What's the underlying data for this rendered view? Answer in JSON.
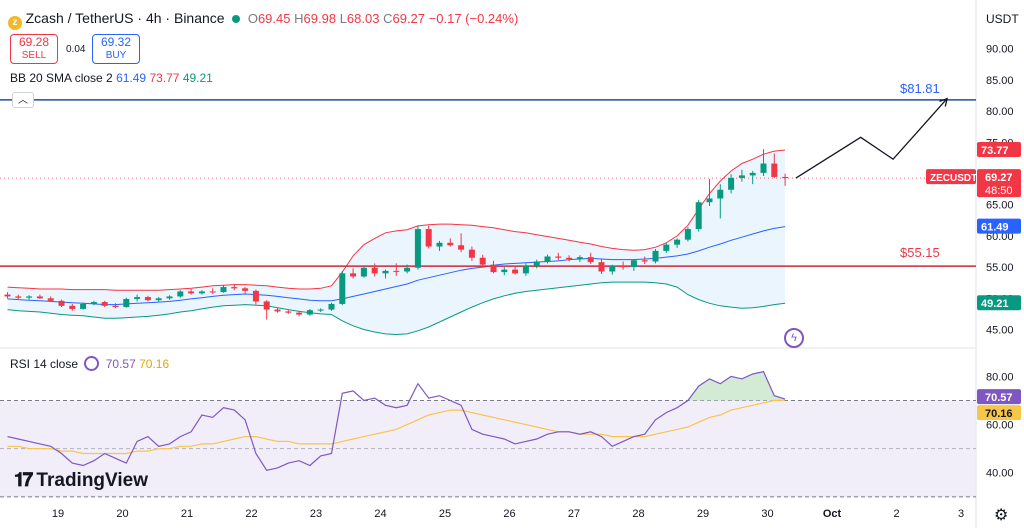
{
  "header": {
    "symbol_title": "Zcash / TetherUS · 4h · Binance",
    "open_label": "O",
    "open": "69.45",
    "high_label": "H",
    "high": "69.98",
    "low_label": "L",
    "low": "68.03",
    "close_label": "C",
    "close": "69.27",
    "change": "−0.17 (−0.24%)",
    "currency": "USDT"
  },
  "trade": {
    "sell_price": "69.28",
    "sell_label": "SELL",
    "spread": "0.04",
    "buy_price": "69.32",
    "buy_label": "BUY"
  },
  "bb_legend": {
    "label": "BB 20 SMA close 2",
    "basis": "61.49",
    "upper": "73.77",
    "lower": "49.21"
  },
  "rsi_legend": {
    "label": "RSI 14 close",
    "rsi": "70.57",
    "ma": "70.16"
  },
  "logo_text": "TradingView",
  "colors": {
    "up": "#089981",
    "down": "#f23645",
    "bb_basis": "#2962ff",
    "bb_upper": "#f23645",
    "bb_lower": "#089981",
    "bb_fill": "#e3f2fd",
    "rsi_line": "#7e57c2",
    "rsi_ma": "#f7c548",
    "rsi_band": "#ede7f6",
    "hline_blue": "#1e4e9a",
    "hline_red": "#cc2936",
    "gridtext": "#131722"
  },
  "icons": [
    "collapse-chevron-icon",
    "rsi-settings-icon",
    "bolt-icon",
    "settings-gear-icon",
    "tradingview-logo-icon"
  ],
  "chart_data": [
    {
      "type": "candlestick",
      "title": "Zcash / TetherUS · 4h · Binance",
      "ylim": [
        43,
        93
      ],
      "y_ticks": [
        45,
        50,
        55,
        60,
        65,
        70,
        75,
        80,
        85,
        90
      ],
      "y_tick_labels": [
        "45.00",
        "50.00",
        "55.00",
        "60.00",
        "65.00",
        "70.00",
        "75.00",
        "80.00",
        "85.00",
        "90.00"
      ],
      "x_ticks": [
        0,
        6,
        12,
        18,
        24,
        30,
        36,
        42,
        48,
        54,
        60,
        66,
        72
      ],
      "x_tick_labels": [
        "19",
        "20",
        "21",
        "22",
        "23",
        "24",
        "25",
        "26",
        "27",
        "28",
        "29",
        "30",
        "Oct",
        "2",
        "3"
      ],
      "x_ticks_full": [
        0,
        6,
        12,
        18,
        24,
        30,
        36,
        42,
        48,
        54,
        60,
        66,
        72,
        78,
        84
      ],
      "candles": [
        [
          50.6,
          51.0,
          50.0,
          50.3
        ],
        [
          50.3,
          50.6,
          49.9,
          50.1
        ],
        [
          50.1,
          50.5,
          49.8,
          50.3
        ],
        [
          50.3,
          50.6,
          49.9,
          50.0
        ],
        [
          50.0,
          50.3,
          49.4,
          49.6
        ],
        [
          49.6,
          49.8,
          48.6,
          48.8
        ],
        [
          48.8,
          49.1,
          48.0,
          48.3
        ],
        [
          48.3,
          49.3,
          48.2,
          49.1
        ],
        [
          49.1,
          49.6,
          48.9,
          49.4
        ],
        [
          49.4,
          49.6,
          48.6,
          48.8
        ],
        [
          48.8,
          49.2,
          48.4,
          48.6
        ],
        [
          48.6,
          50.1,
          48.5,
          49.9
        ],
        [
          49.9,
          50.6,
          49.5,
          50.2
        ],
        [
          50.2,
          50.4,
          49.5,
          49.7
        ],
        [
          49.7,
          50.2,
          49.5,
          50.0
        ],
        [
          50.0,
          50.5,
          49.8,
          50.3
        ],
        [
          50.3,
          51.3,
          50.1,
          51.1
        ],
        [
          51.1,
          51.5,
          50.6,
          50.8
        ],
        [
          50.8,
          51.3,
          50.6,
          51.1
        ],
        [
          51.1,
          51.6,
          50.7,
          51.0
        ],
        [
          51.0,
          52.1,
          50.9,
          51.8
        ],
        [
          51.8,
          52.3,
          51.3,
          51.6
        ],
        [
          51.6,
          51.8,
          50.8,
          51.2
        ],
        [
          51.2,
          51.4,
          49.0,
          49.5
        ],
        [
          49.5,
          49.7,
          46.6,
          48.2
        ],
        [
          48.2,
          48.5,
          47.7,
          47.9
        ],
        [
          47.9,
          48.1,
          47.5,
          47.7
        ],
        [
          47.7,
          48.0,
          47.1,
          47.4
        ],
        [
          47.4,
          48.3,
          47.2,
          48.1
        ],
        [
          48.1,
          48.4,
          47.8,
          48.2
        ],
        [
          48.2,
          49.3,
          48.0,
          49.1
        ],
        [
          49.1,
          54.4,
          48.9,
          54.0
        ],
        [
          54.0,
          54.8,
          53.2,
          53.5
        ],
        [
          53.5,
          55.2,
          53.3,
          54.9
        ],
        [
          54.9,
          55.6,
          53.5,
          54.0
        ],
        [
          54.0,
          54.6,
          53.2,
          54.4
        ],
        [
          54.4,
          55.6,
          53.6,
          54.3
        ],
        [
          54.3,
          55.4,
          54.0,
          54.9
        ],
        [
          54.9,
          61.6,
          54.6,
          61.1
        ],
        [
          61.1,
          61.6,
          58.0,
          58.3
        ],
        [
          58.3,
          59.2,
          57.6,
          58.9
        ],
        [
          58.9,
          59.6,
          58.3,
          58.5
        ],
        [
          58.5,
          60.4,
          57.4,
          57.8
        ],
        [
          57.8,
          58.3,
          56.0,
          56.5
        ],
        [
          56.5,
          57.0,
          55.0,
          55.4
        ],
        [
          55.4,
          56.0,
          54.0,
          54.2
        ],
        [
          54.2,
          55.0,
          53.7,
          54.6
        ],
        [
          54.6,
          55.2,
          53.8,
          54.0
        ],
        [
          54.0,
          55.6,
          53.6,
          55.2
        ],
        [
          55.2,
          56.2,
          54.8,
          55.9
        ],
        [
          55.9,
          57.0,
          55.6,
          56.7
        ],
        [
          56.7,
          57.3,
          56.1,
          56.5
        ],
        [
          56.5,
          56.9,
          55.9,
          56.3
        ],
        [
          56.3,
          56.9,
          55.8,
          56.6
        ],
        [
          56.6,
          57.3,
          55.5,
          55.8
        ],
        [
          55.8,
          56.4,
          53.9,
          54.3
        ],
        [
          54.3,
          55.4,
          53.8,
          55.2
        ],
        [
          55.2,
          55.9,
          54.6,
          55.0
        ],
        [
          55.0,
          56.3,
          54.4,
          56.1
        ],
        [
          56.1,
          56.7,
          55.5,
          55.9
        ],
        [
          55.9,
          57.9,
          55.6,
          57.6
        ],
        [
          57.6,
          58.9,
          57.3,
          58.6
        ],
        [
          58.6,
          59.6,
          58.1,
          59.4
        ],
        [
          59.4,
          61.4,
          59.1,
          61.1
        ],
        [
          61.1,
          65.8,
          60.7,
          65.4
        ],
        [
          65.4,
          69.1,
          64.8,
          66.0
        ],
        [
          66.0,
          68.3,
          62.8,
          67.4
        ],
        [
          67.4,
          69.9,
          66.8,
          69.3
        ],
        [
          69.3,
          70.6,
          68.7,
          69.7
        ],
        [
          69.7,
          70.4,
          68.3,
          70.1
        ],
        [
          70.1,
          73.9,
          69.6,
          71.6
        ],
        [
          71.6,
          73.2,
          69.3,
          69.45
        ],
        [
          69.45,
          69.98,
          68.03,
          69.27
        ]
      ],
      "bb_upper": [
        51.8,
        51.7,
        51.6,
        51.5,
        51.5,
        51.5,
        51.4,
        51.4,
        51.4,
        51.4,
        51.3,
        51.3,
        51.3,
        51.3,
        51.3,
        51.4,
        51.5,
        51.6,
        51.8,
        52.0,
        52.1,
        52.2,
        52.2,
        52.1,
        52.0,
        51.8,
        51.6,
        51.5,
        51.5,
        51.6,
        52.0,
        54.2,
        56.8,
        58.6,
        59.6,
        60.5,
        60.8,
        61.0,
        61.6,
        61.8,
        61.9,
        61.9,
        61.8,
        61.7,
        61.5,
        61.3,
        61.0,
        60.7,
        60.5,
        60.2,
        59.9,
        59.6,
        59.3,
        59.0,
        58.7,
        58.3,
        58.0,
        57.8,
        57.7,
        57.8,
        58.2,
        58.9,
        60.0,
        61.7,
        64.3,
        66.8,
        68.8,
        70.4,
        71.6,
        72.3,
        73.1,
        73.6,
        73.77
      ],
      "bb_basis": [
        49.9,
        49.8,
        49.7,
        49.6,
        49.5,
        49.4,
        49.3,
        49.2,
        49.1,
        49.0,
        49.0,
        49.1,
        49.2,
        49.3,
        49.4,
        49.5,
        49.7,
        49.9,
        50.1,
        50.3,
        50.5,
        50.6,
        50.7,
        50.6,
        50.5,
        50.3,
        50.1,
        49.9,
        49.7,
        49.6,
        49.6,
        49.9,
        50.3,
        50.7,
        51.1,
        51.5,
        51.9,
        52.3,
        52.9,
        53.3,
        53.7,
        54.1,
        54.5,
        54.8,
        55.0,
        55.3,
        55.5,
        55.6,
        55.7,
        55.8,
        55.9,
        56.0,
        56.2,
        56.3,
        56.4,
        56.3,
        56.2,
        56.2,
        56.2,
        56.3,
        56.4,
        56.6,
        56.8,
        57.1,
        57.6,
        58.2,
        58.7,
        59.3,
        59.8,
        60.3,
        60.8,
        61.2,
        61.49
      ],
      "bb_lower": [
        48.2,
        48.0,
        47.9,
        47.8,
        47.6,
        47.4,
        47.3,
        47.2,
        47.0,
        46.8,
        46.8,
        46.9,
        47.0,
        47.1,
        47.3,
        47.5,
        47.8,
        48.0,
        48.3,
        48.6,
        48.8,
        48.9,
        49.0,
        48.9,
        48.8,
        48.5,
        48.2,
        47.9,
        47.7,
        47.5,
        47.4,
        46.4,
        45.6,
        45.0,
        44.6,
        44.3,
        44.2,
        44.3,
        44.8,
        45.4,
        46.2,
        47.0,
        47.8,
        48.6,
        49.3,
        49.9,
        50.4,
        50.8,
        51.1,
        51.3,
        51.5,
        51.7,
        51.9,
        52.1,
        52.3,
        52.5,
        52.6,
        52.6,
        52.6,
        52.6,
        52.5,
        52.3,
        51.8,
        50.6,
        49.8,
        49.2,
        48.8,
        48.6,
        48.4,
        48.5,
        48.7,
        49.0,
        49.21
      ],
      "hlines": [
        {
          "value": 81.81,
          "label": "$81.81"
        },
        {
          "value": 55.15,
          "label": "$55.15"
        }
      ],
      "dotted_price_line": 69.27,
      "projection": {
        "points": [
          [
            73,
            69.27
          ],
          [
            79,
            75.8
          ],
          [
            82,
            72.3
          ],
          [
            87,
            82.0
          ]
        ]
      },
      "price_labels": [
        {
          "text": "73.77",
          "value": 73.77
        },
        {
          "text": "ZECUSDT",
          "value": 70.0
        },
        {
          "text": "69.27",
          "value": 69.27
        },
        {
          "text": "48:50",
          "value": 68.0
        },
        {
          "text": "61.49",
          "value": 61.49
        },
        {
          "text": "49.21",
          "value": 49.21
        }
      ]
    },
    {
      "type": "line",
      "title": "RSI 14 close",
      "ylim": [
        32,
        86
      ],
      "y_ticks": [
        40,
        60,
        80
      ],
      "y_tick_labels": [
        "40.00",
        "60.00",
        "80.00"
      ],
      "band": [
        30,
        70
      ],
      "mid": 50,
      "rsi": [
        55,
        54,
        53,
        52,
        51,
        48,
        44,
        43,
        45,
        48,
        46,
        44,
        53,
        55,
        51,
        52,
        55,
        57,
        64,
        63,
        67,
        66,
        62,
        48,
        41,
        42,
        44,
        45,
        43,
        47,
        48,
        73,
        74,
        70,
        71,
        68,
        67,
        68,
        77,
        71,
        72,
        70,
        68,
        58,
        56,
        55,
        54,
        52,
        53,
        54,
        56,
        57,
        57,
        56,
        57,
        55,
        51,
        53,
        55,
        56,
        62,
        65,
        67,
        70,
        76,
        79,
        77,
        80,
        79,
        81,
        82,
        72,
        70.57
      ],
      "rsi_ma": [
        51,
        51,
        50,
        50,
        50,
        49,
        49,
        48,
        48,
        48,
        48,
        48,
        49,
        49,
        50,
        50,
        51,
        51,
        52,
        52,
        53,
        54,
        55,
        55,
        54,
        53,
        53,
        52,
        52,
        52,
        52,
        53,
        54,
        55,
        56,
        57,
        58,
        60,
        62,
        64,
        65,
        66,
        66,
        65,
        64,
        63,
        62,
        61,
        60,
        59,
        58,
        57,
        57,
        56,
        56,
        56,
        55,
        55,
        55,
        55,
        56,
        57,
        58,
        59,
        61,
        63,
        64,
        66,
        67,
        68,
        69,
        70,
        70.16
      ],
      "labels": [
        {
          "text": "70.57",
          "value": 70.57
        },
        {
          "text": "70.16",
          "value": 70.16
        }
      ]
    }
  ]
}
